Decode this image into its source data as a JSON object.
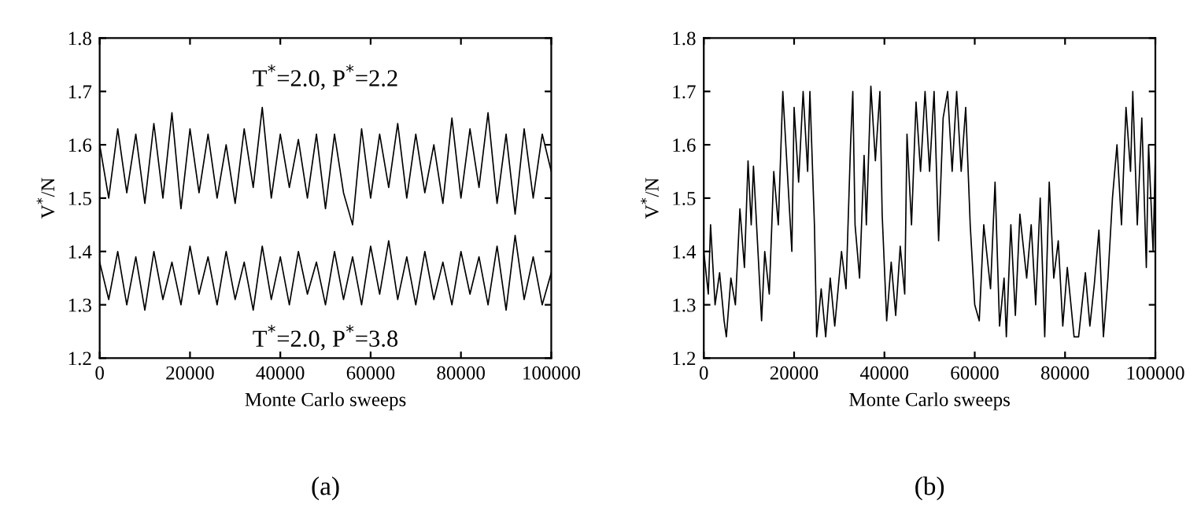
{
  "chart_data": [
    {
      "type": "line",
      "xlabel": "Monte Carlo sweeps",
      "ylabel": "V$^{*}$/N",
      "xlim": [
        0,
        100000
      ],
      "ylim": [
        1.2,
        1.8
      ],
      "xticks": [
        0,
        20000,
        40000,
        60000,
        80000,
        100000
      ],
      "yticks": [
        1.2,
        1.3,
        1.4,
        1.5,
        1.6,
        1.7,
        1.8
      ],
      "annotations": [
        "(a)"
      ],
      "x": [
        0,
        2000,
        4000,
        6000,
        8000,
        10000,
        12000,
        14000,
        16000,
        18000,
        20000,
        22000,
        24000,
        26000,
        28000,
        30000,
        32000,
        34000,
        36000,
        38000,
        40000,
        42000,
        44000,
        46000,
        48000,
        50000,
        52000,
        54000,
        56000,
        58000,
        60000,
        62000,
        64000,
        66000,
        68000,
        70000,
        72000,
        74000,
        76000,
        78000,
        80000,
        82000,
        84000,
        86000,
        88000,
        90000,
        92000,
        94000,
        96000,
        98000,
        100000
      ],
      "series": [
        {
          "name": "T$^{*}$=2.0, P$^{*}$=2.2",
          "color": "#000000",
          "values": [
            1.6,
            1.5,
            1.63,
            1.51,
            1.62,
            1.49,
            1.64,
            1.5,
            1.66,
            1.48,
            1.63,
            1.51,
            1.62,
            1.5,
            1.6,
            1.49,
            1.63,
            1.52,
            1.67,
            1.5,
            1.62,
            1.52,
            1.61,
            1.5,
            1.62,
            1.48,
            1.62,
            1.51,
            1.45,
            1.63,
            1.5,
            1.62,
            1.52,
            1.64,
            1.5,
            1.62,
            1.51,
            1.6,
            1.49,
            1.65,
            1.5,
            1.63,
            1.52,
            1.66,
            1.49,
            1.62,
            1.47,
            1.63,
            1.5,
            1.62,
            1.55
          ]
        },
        {
          "name": "T$^{*}$=2.0, P$^{*}$=3.8",
          "color": "#000000",
          "values": [
            1.38,
            1.31,
            1.4,
            1.3,
            1.39,
            1.29,
            1.4,
            1.31,
            1.38,
            1.3,
            1.41,
            1.32,
            1.39,
            1.3,
            1.4,
            1.31,
            1.38,
            1.29,
            1.41,
            1.31,
            1.39,
            1.3,
            1.4,
            1.32,
            1.38,
            1.3,
            1.4,
            1.31,
            1.39,
            1.3,
            1.41,
            1.32,
            1.42,
            1.31,
            1.39,
            1.3,
            1.4,
            1.31,
            1.38,
            1.3,
            1.4,
            1.32,
            1.39,
            1.3,
            1.41,
            1.29,
            1.43,
            1.31,
            1.39,
            1.3,
            1.36
          ]
        }
      ]
    },
    {
      "type": "line",
      "xlabel": "Monte Carlo sweeps",
      "ylabel": "V$^{*}$/N",
      "xlim": [
        0,
        100000
      ],
      "ylim": [
        1.2,
        1.8
      ],
      "xticks": [
        0,
        20000,
        40000,
        60000,
        80000,
        100000
      ],
      "yticks": [
        1.2,
        1.3,
        1.4,
        1.5,
        1.6,
        1.7,
        1.8
      ],
      "annotations": [
        "(b)"
      ],
      "x": [
        0,
        1000,
        1500,
        2500,
        3500,
        4500,
        5000,
        6000,
        7000,
        8000,
        9000,
        9800,
        10500,
        11000,
        12000,
        12800,
        13500,
        14500,
        15500,
        16500,
        17500,
        18500,
        19500,
        20000,
        21000,
        22000,
        23000,
        23500,
        24500,
        25000,
        26000,
        27000,
        28000,
        29000,
        30500,
        31500,
        32500,
        33000,
        33500,
        34500,
        35500,
        36000,
        37000,
        38000,
        39000,
        39500,
        40500,
        41500,
        42500,
        43500,
        44500,
        45000,
        46000,
        47000,
        48000,
        49000,
        50000,
        51000,
        52000,
        53000,
        54000,
        55000,
        56000,
        57000,
        58000,
        59000,
        60000,
        61000,
        62000,
        63500,
        64500,
        65500,
        66500,
        67000,
        68000,
        69000,
        70000,
        71500,
        72500,
        73500,
        74500,
        75500,
        76500,
        77500,
        78500,
        79500,
        80500,
        82000,
        83000,
        84500,
        85500,
        86500,
        87500,
        88500,
        89500,
        90500,
        91500,
        92500,
        93500,
        94500,
        95000,
        96000,
        97000,
        98000,
        98500,
        99500,
        100000
      ],
      "series": [
        {
          "color": "#000000",
          "values": [
            1.4,
            1.32,
            1.45,
            1.3,
            1.36,
            1.27,
            1.24,
            1.35,
            1.3,
            1.48,
            1.37,
            1.57,
            1.45,
            1.56,
            1.4,
            1.27,
            1.4,
            1.32,
            1.55,
            1.45,
            1.7,
            1.55,
            1.4,
            1.67,
            1.53,
            1.7,
            1.55,
            1.7,
            1.45,
            1.24,
            1.33,
            1.24,
            1.35,
            1.26,
            1.4,
            1.33,
            1.6,
            1.7,
            1.45,
            1.35,
            1.58,
            1.45,
            1.71,
            1.57,
            1.7,
            1.47,
            1.27,
            1.38,
            1.28,
            1.41,
            1.32,
            1.62,
            1.45,
            1.68,
            1.55,
            1.7,
            1.55,
            1.7,
            1.42,
            1.65,
            1.7,
            1.55,
            1.7,
            1.55,
            1.67,
            1.45,
            1.3,
            1.27,
            1.45,
            1.33,
            1.53,
            1.26,
            1.35,
            1.24,
            1.45,
            1.28,
            1.47,
            1.35,
            1.45,
            1.3,
            1.5,
            1.24,
            1.53,
            1.35,
            1.42,
            1.26,
            1.37,
            1.24,
            1.24,
            1.36,
            1.26,
            1.34,
            1.44,
            1.24,
            1.35,
            1.5,
            1.6,
            1.45,
            1.67,
            1.55,
            1.7,
            1.45,
            1.65,
            1.37,
            1.6,
            1.4,
            1.58
          ]
        }
      ]
    }
  ]
}
